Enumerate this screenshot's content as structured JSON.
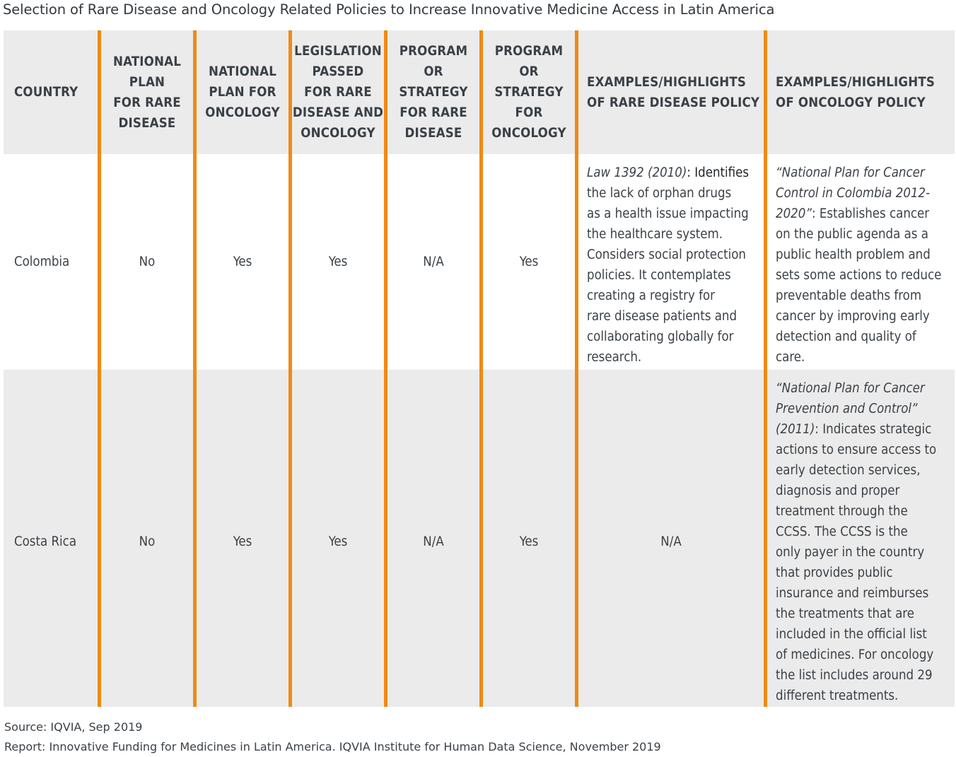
{
  "title": "Selection of Rare Disease and Oncology Related Policies to Increase Innovative Medicine Access in Latin America",
  "colors": {
    "accent": "#f08a14",
    "header_bg": "#ebebeb",
    "alt_row_bg": "#ebebeb"
  },
  "columns": [
    "COUNTRY",
    "NATIONAL PLAN FOR RARE DISEASE",
    "NATIONAL PLAN FOR ONCOLOGY",
    "LEGISLATION PASSED FOR RARE DISEASE AND ONCOLOGY",
    "PROGRAM OR STRATEGY FOR RARE DISEASE",
    "PROGRAM OR STRATEGY FOR ONCOLOGY",
    "EXAMPLES/HIGHLIGHTS OF RARE DISEASE POLICY",
    "EXAMPLES/HIGHLIGHTS OF ONCOLOGY POLICY"
  ],
  "header_lines": {
    "c0": [
      "COUNTRY"
    ],
    "c1": [
      "NATIONAL",
      "PLAN",
      "FOR RARE",
      "DISEASE"
    ],
    "c2": [
      "NATIONAL",
      "PLAN FOR",
      "ONCOLOGY"
    ],
    "c3": [
      "LEGISLATION",
      "PASSED",
      "FOR RARE",
      "DISEASE AND",
      "ONCOLOGY"
    ],
    "c4": [
      "PROGRAM",
      "OR",
      "STRATEGY",
      "FOR RARE",
      "DISEASE"
    ],
    "c5": [
      "PROGRAM",
      "OR",
      "STRATEGY",
      "FOR",
      "ONCOLOGY"
    ],
    "c6": [
      "EXAMPLES/HIGHLIGHTS",
      "OF RARE DISEASE POLICY"
    ],
    "c7": [
      "EXAMPLES/HIGHLIGHTS",
      "OF ONCOLOGY POLICY"
    ]
  },
  "rows": [
    {
      "country": "Colombia",
      "rare_plan": "No",
      "onc_plan": "Yes",
      "legislation": "Yes",
      "rare_program": "N/A",
      "onc_program": "Yes",
      "rare_highlight": {
        "ref": "Law 1392 (2010)",
        "lines": [
          ": Identifies",
          "the lack of orphan drugs",
          "as a health issue impacting",
          "the healthcare system.",
          "Considers social protection",
          "policies. It contemplates",
          "creating a registry for",
          "rare disease patients and",
          "collaborating globally for",
          "research."
        ]
      },
      "onc_highlight": {
        "ref_lines": [
          "“National Plan for Cancer",
          "Control in Colombia 2012-",
          "2020”"
        ],
        "lines": [
          ": Establishes cancer",
          "on the public agenda as a",
          "public health problem and",
          "sets some actions to reduce",
          "preventable deaths from",
          "cancer by improving early",
          "detection and quality of",
          "care."
        ]
      }
    },
    {
      "country": "Costa Rica",
      "rare_plan": "No",
      "onc_plan": "Yes",
      "legislation": "Yes",
      "rare_program": "N/A",
      "onc_program": "Yes",
      "rare_highlight_text": "N/A",
      "onc_highlight": {
        "ref_lines": [
          "“National Plan for Cancer",
          "Prevention and Control”",
          "(2011)"
        ],
        "lines": [
          ": Indicates strategic",
          "actions to ensure access to",
          "early detection services,",
          "diagnosis and proper",
          "treatment through the",
          "CCSS. The CCSS is the",
          "only payer in the country",
          "that provides public",
          "insurance and reimburses",
          "the treatments that are",
          "included in the official list",
          "of medicines. For oncology",
          "the list includes around 29",
          "different treatments."
        ]
      }
    }
  ],
  "footer": {
    "source": "Source: IQVIA, Sep 2019",
    "report": "Report: Innovative Funding for Medicines in Latin America. IQVIA Institute for Human Data Science, November 2019"
  }
}
